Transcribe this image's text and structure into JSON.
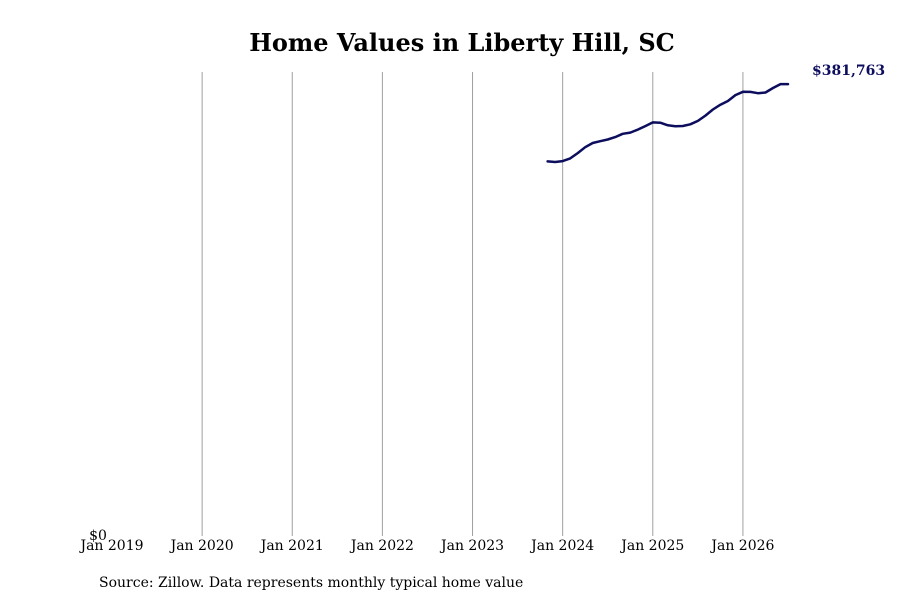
{
  "chart_data": {
    "type": "line",
    "title": "Home Values in Liberty Hill, SC",
    "xlabel": "",
    "ylabel": "",
    "source": "Source: Zillow. Data represents monthly typical home value",
    "y_tick_label": "$0",
    "x_tick_labels": [
      "Jan 2019",
      "Jan 2020",
      "Jan 2021",
      "Jan 2022",
      "Jan 2023",
      "Jan 2024",
      "Jan 2025",
      "Jan 2026"
    ],
    "x_ticks_year": [
      2019,
      2020,
      2021,
      2022,
      2023,
      2024,
      2025,
      2026
    ],
    "xlim_year": [
      2019,
      2026.6
    ],
    "ylim": [
      0,
      392000
    ],
    "grid": "vertical",
    "line_color": "#0d0d5e",
    "end_label": "$381,763",
    "series": [
      {
        "x": [
          "2023-11",
          "2023-12",
          "2024-01",
          "2024-02",
          "2024-03",
          "2024-04",
          "2024-05",
          "2024-06",
          "2024-07",
          "2024-08",
          "2024-09",
          "2024-10",
          "2024-11",
          "2024-12",
          "2025-01",
          "2025-02",
          "2025-03",
          "2025-04",
          "2025-05",
          "2025-06",
          "2025-07",
          "2025-08",
          "2025-09",
          "2025-10",
          "2025-11",
          "2025-12",
          "2026-01",
          "2026-02",
          "2026-03",
          "2026-04",
          "2026-05",
          "2026-06",
          "2026-07"
        ],
        "values": [
          316500,
          316000,
          316700,
          319000,
          323500,
          328500,
          332000,
          333500,
          335000,
          337000,
          339800,
          340800,
          343300,
          346300,
          349400,
          349200,
          347000,
          346100,
          346400,
          347800,
          350700,
          355200,
          360300,
          364400,
          367500,
          372500,
          375300,
          375200,
          374100,
          374700,
          378500,
          381763,
          381763
        ]
      }
    ]
  }
}
